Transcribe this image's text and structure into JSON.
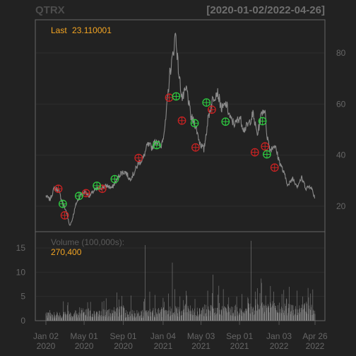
{
  "header": {
    "symbol": "QTRX",
    "date_range": "[2020-01-02/2022-04-26]"
  },
  "colors": {
    "background": "#222222",
    "panel_border": "#666666",
    "grid": "#2d2d2d",
    "price_line": "#8a8a8a",
    "volume_bar": "#8a8a8a",
    "buy_marker": "#2ecc40",
    "sell_marker": "#cc2222",
    "accent": "#f5a623"
  },
  "chart_data": [
    {
      "type": "line",
      "panel": "price",
      "series": [
        {
          "values": [
            [
              "2020-01-02",
              24.0
            ],
            [
              "2020-01-15",
              22.5
            ],
            [
              "2020-01-28",
              27.0
            ],
            [
              "2020-02-10",
              26.5
            ],
            [
              "2020-02-24",
              21.0
            ],
            [
              "2020-03-06",
              18.0
            ],
            [
              "2020-03-16",
              12.5
            ],
            [
              "2020-03-23",
              14.0
            ],
            [
              "2020-04-06",
              21.0
            ],
            [
              "2020-04-20",
              24.5
            ],
            [
              "2020-05-04",
              25.5
            ],
            [
              "2020-05-18",
              24.0
            ],
            [
              "2020-06-01",
              26.0
            ],
            [
              "2020-06-15",
              27.0
            ],
            [
              "2020-06-29",
              27.5
            ],
            [
              "2020-07-13",
              28.0
            ],
            [
              "2020-07-27",
              27.0
            ],
            [
              "2020-08-10",
              30.0
            ],
            [
              "2020-08-24",
              33.0
            ],
            [
              "2020-09-08",
              33.5
            ],
            [
              "2020-09-21",
              30.5
            ],
            [
              "2020-10-05",
              33.0
            ],
            [
              "2020-10-19",
              37.0
            ],
            [
              "2020-11-02",
              38.5
            ],
            [
              "2020-11-16",
              44.0
            ],
            [
              "2020-11-30",
              43.0
            ],
            [
              "2020-12-14",
              46.0
            ],
            [
              "2020-12-28",
              43.0
            ],
            [
              "2021-01-11",
              52.0
            ],
            [
              "2021-01-25",
              72.0
            ],
            [
              "2021-02-05",
              80.0
            ],
            [
              "2021-02-12",
              88.0
            ],
            [
              "2021-02-22",
              72.0
            ],
            [
              "2021-03-05",
              62.0
            ],
            [
              "2021-03-19",
              66.0
            ],
            [
              "2021-04-01",
              55.0
            ],
            [
              "2021-04-15",
              52.0
            ],
            [
              "2021-04-29",
              45.0
            ],
            [
              "2021-05-12",
              42.0
            ],
            [
              "2021-05-26",
              55.0
            ],
            [
              "2021-06-09",
              62.0
            ],
            [
              "2021-06-23",
              65.0
            ],
            [
              "2021-07-07",
              58.0
            ],
            [
              "2021-07-21",
              60.0
            ],
            [
              "2021-08-04",
              54.0
            ],
            [
              "2021-08-18",
              52.0
            ],
            [
              "2021-09-01",
              55.0
            ],
            [
              "2021-09-15",
              50.0
            ],
            [
              "2021-09-29",
              52.0
            ],
            [
              "2021-10-13",
              56.0
            ],
            [
              "2021-10-27",
              48.0
            ],
            [
              "2021-11-10",
              57.0
            ],
            [
              "2021-11-19",
              58.0
            ],
            [
              "2021-11-26",
              48.0
            ],
            [
              "2021-12-06",
              42.0
            ],
            [
              "2021-12-20",
              44.0
            ],
            [
              "2022-01-03",
              38.0
            ],
            [
              "2022-01-18",
              33.0
            ],
            [
              "2022-02-01",
              28.0
            ],
            [
              "2022-02-15",
              31.0
            ],
            [
              "2022-03-01",
              28.0
            ],
            [
              "2022-03-15",
              31.0
            ],
            [
              "2022-03-29",
              27.0
            ],
            [
              "2022-04-12",
              28.0
            ],
            [
              "2022-04-26",
              23.11
            ]
          ]
        }
      ],
      "ylim": [
        10,
        93
      ],
      "yticks": [
        20,
        40,
        60,
        80
      ],
      "grid": true,
      "annotation": {
        "label": "Last",
        "value": "23.110001"
      },
      "markers": {
        "buy": [
          [
            "2020-02-24",
            20.9
          ],
          [
            "2020-04-15",
            24.0
          ],
          [
            "2020-06-10",
            28.0
          ],
          [
            "2020-08-05",
            30.6
          ],
          [
            "2020-12-15",
            43.9
          ],
          [
            "2021-02-14",
            63.0
          ],
          [
            "2021-04-13",
            52.5
          ],
          [
            "2021-05-20",
            60.6
          ],
          [
            "2021-07-19",
            53.1
          ],
          [
            "2021-11-12",
            53.3
          ],
          [
            "2021-11-26",
            40.3
          ]
        ],
        "sell": [
          [
            "2020-02-10",
            26.8
          ],
          [
            "2020-03-01",
            16.4
          ],
          [
            "2020-05-07",
            25.1
          ],
          [
            "2020-06-27",
            26.8
          ],
          [
            "2020-10-19",
            38.9
          ],
          [
            "2021-01-23",
            62.5
          ],
          [
            "2021-03-04",
            53.5
          ],
          [
            "2021-04-16",
            43.0
          ],
          [
            "2021-06-06",
            57.8
          ],
          [
            "2021-10-19",
            41.1
          ],
          [
            "2021-11-20",
            43.4
          ],
          [
            "2021-12-20",
            35.1
          ]
        ]
      }
    },
    {
      "type": "bar",
      "panel": "volume",
      "annotation": {
        "label": "Volume (100,000s):",
        "value": "270,400"
      },
      "ylim": [
        0,
        17.5
      ],
      "yticks": [
        0,
        5,
        10,
        15
      ],
      "x_start": "2020-01-02",
      "x_end": "2022-04-26",
      "volume_profile": [
        1.4,
        1.3,
        1.6,
        2.0,
        1.5,
        1.8,
        2.3,
        1.7,
        1.6,
        1.9,
        2.0,
        2.2,
        2.6,
        2.1,
        2.4,
        2.8,
        2.5,
        2.3,
        2.7,
        3.0,
        2.9,
        2.6,
        2.4,
        2.8
      ],
      "spikes": [
        [
          "2020-02-26",
          4.0
        ],
        [
          "2020-03-11",
          3.8
        ],
        [
          "2020-08-15",
          6.5
        ],
        [
          "2020-09-05",
          5.0
        ],
        [
          "2020-09-25",
          5.2
        ],
        [
          "2020-11-06",
          4.5
        ],
        [
          "2020-11-09",
          15.6
        ],
        [
          "2020-11-23",
          6.0
        ],
        [
          "2020-12-10",
          5.3
        ],
        [
          "2021-01-04",
          4.7
        ],
        [
          "2021-01-21",
          5.6
        ],
        [
          "2021-02-02",
          12.0
        ],
        [
          "2021-02-10",
          6.5
        ],
        [
          "2021-03-19",
          5.2
        ],
        [
          "2021-05-24",
          6.2
        ],
        [
          "2021-06-10",
          9.5
        ],
        [
          "2021-06-28",
          7.2
        ],
        [
          "2021-07-12",
          6.5
        ],
        [
          "2021-08-23",
          5.0
        ],
        [
          "2021-09-09",
          5.5
        ],
        [
          "2021-10-07",
          16.5
        ],
        [
          "2021-10-20",
          6.0
        ],
        [
          "2021-11-08",
          8.7
        ],
        [
          "2021-11-22",
          5.2
        ],
        [
          "2021-12-17",
          6.0
        ],
        [
          "2022-01-12",
          5.5
        ],
        [
          "2022-02-04",
          7.0
        ],
        [
          "2022-03-01",
          6.2
        ],
        [
          "2022-03-18",
          5.0
        ],
        [
          "2022-04-06",
          4.8
        ]
      ]
    }
  ],
  "x_axis": {
    "ticks": [
      {
        "date": "2020-01-02",
        "line1": "Jan 02",
        "line2": "2020"
      },
      {
        "date": "2020-05-01",
        "line1": "May 01",
        "line2": "2020"
      },
      {
        "date": "2020-09-01",
        "line1": "Sep 01",
        "line2": "2020"
      },
      {
        "date": "2021-01-04",
        "line1": "Jan 04",
        "line2": "2021"
      },
      {
        "date": "2021-05-03",
        "line1": "May 03",
        "line2": "2021"
      },
      {
        "date": "2021-09-01",
        "line1": "Sep 01",
        "line2": "2021"
      },
      {
        "date": "2022-01-03",
        "line1": "Jan 03",
        "line2": "2022"
      },
      {
        "date": "2022-04-26",
        "line1": "Apr 26",
        "line2": "2022"
      }
    ]
  }
}
